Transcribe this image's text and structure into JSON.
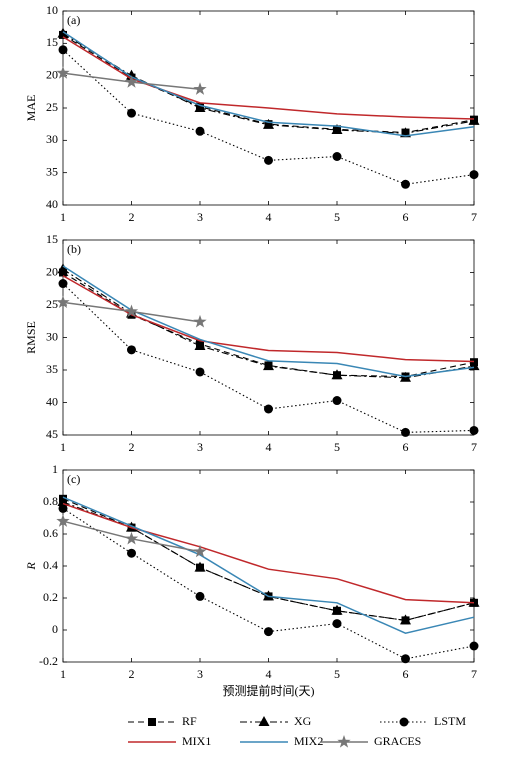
{
  "chart_data": [
    {
      "type": "line",
      "panel_label": "(a)",
      "ylabel": "MAE",
      "x": [
        1,
        2,
        3,
        4,
        5,
        6,
        7
      ],
      "xlim": [
        1,
        7
      ],
      "xticks": [
        1,
        2,
        3,
        4,
        5,
        6,
        7
      ],
      "ylim": [
        10,
        40
      ],
      "yreverse": true,
      "yticks": [
        10,
        15,
        20,
        25,
        30,
        35,
        40
      ],
      "series": [
        {
          "name": "RF",
          "color": "#000000",
          "dash": "6,4",
          "marker": "square",
          "values": [
            13.7,
            20.3,
            24.8,
            27.5,
            28.3,
            28.8,
            26.8
          ]
        },
        {
          "name": "XG",
          "color": "#000000",
          "dash": "7,3,2,3",
          "marker": "triangle",
          "values": [
            13.5,
            20.0,
            25.0,
            27.6,
            28.4,
            28.9,
            27.0
          ]
        },
        {
          "name": "LSTM",
          "color": "#000000",
          "dash": "1.5,2.5",
          "marker": "circle",
          "values": [
            16.0,
            25.8,
            28.6,
            33.1,
            32.5,
            36.8,
            35.3
          ]
        },
        {
          "name": "MIX1",
          "color": "#c0282b",
          "dash": "none",
          "marker": "none",
          "values": [
            14.0,
            20.5,
            24.2,
            25.0,
            25.9,
            26.4,
            26.7
          ]
        },
        {
          "name": "MIX2",
          "color": "#3a87b5",
          "dash": "none",
          "marker": "none",
          "values": [
            13.2,
            20.2,
            24.6,
            27.2,
            27.8,
            29.3,
            27.9
          ]
        },
        {
          "name": "GRACES",
          "color": "#777777",
          "dash": "none",
          "marker": "star",
          "values": [
            19.6,
            21.0,
            22.1,
            null,
            null,
            null,
            null
          ]
        }
      ]
    },
    {
      "type": "line",
      "panel_label": "(b)",
      "ylabel": "RMSE",
      "x": [
        1,
        2,
        3,
        4,
        5,
        6,
        7
      ],
      "xlim": [
        1,
        7
      ],
      "xticks": [
        1,
        2,
        3,
        4,
        5,
        6,
        7
      ],
      "ylim": [
        15,
        45
      ],
      "yreverse": true,
      "yticks": [
        15,
        20,
        25,
        30,
        35,
        40,
        45
      ],
      "series": [
        {
          "values": [
            20.0,
            26.5,
            31.0,
            34.3,
            35.8,
            36.0,
            33.8
          ]
        },
        {
          "values": [
            19.5,
            26.3,
            31.3,
            34.4,
            35.8,
            36.2,
            34.4
          ]
        },
        {
          "values": [
            21.7,
            31.9,
            35.3,
            41.0,
            39.7,
            44.6,
            44.3
          ]
        },
        {
          "values": [
            20.5,
            26.5,
            30.5,
            32.0,
            32.3,
            33.4,
            33.7
          ]
        },
        {
          "values": [
            19.0,
            25.8,
            30.3,
            33.6,
            34.0,
            36.0,
            34.6
          ]
        },
        {
          "values": [
            24.6,
            26.0,
            27.6,
            null,
            null,
            null,
            null
          ]
        }
      ]
    },
    {
      "type": "line",
      "panel_label": "(c)",
      "ylabel": "R",
      "xlabel": "预测提前时间(天)",
      "x": [
        1,
        2,
        3,
        4,
        5,
        6,
        7
      ],
      "xlim": [
        1,
        7
      ],
      "xticks": [
        1,
        2,
        3,
        4,
        5,
        6,
        7
      ],
      "ylim": [
        -0.2,
        1
      ],
      "yreverse": false,
      "yticks": [
        -0.2,
        0,
        0.2,
        0.4,
        0.6,
        0.8,
        1
      ],
      "series": [
        {
          "values": [
            0.82,
            0.64,
            0.39,
            0.21,
            0.12,
            0.06,
            0.17
          ]
        },
        {
          "values": [
            0.8,
            0.64,
            0.39,
            0.21,
            0.12,
            0.06,
            0.17
          ]
        },
        {
          "values": [
            0.76,
            0.48,
            0.21,
            -0.01,
            0.04,
            -0.18,
            -0.1
          ]
        },
        {
          "values": [
            0.79,
            0.64,
            0.52,
            0.38,
            0.32,
            0.19,
            0.17
          ]
        },
        {
          "values": [
            0.83,
            0.65,
            0.47,
            0.21,
            0.17,
            -0.02,
            0.08
          ]
        },
        {
          "values": [
            0.68,
            0.57,
            0.49,
            null,
            null,
            null,
            null
          ]
        }
      ]
    }
  ]
}
